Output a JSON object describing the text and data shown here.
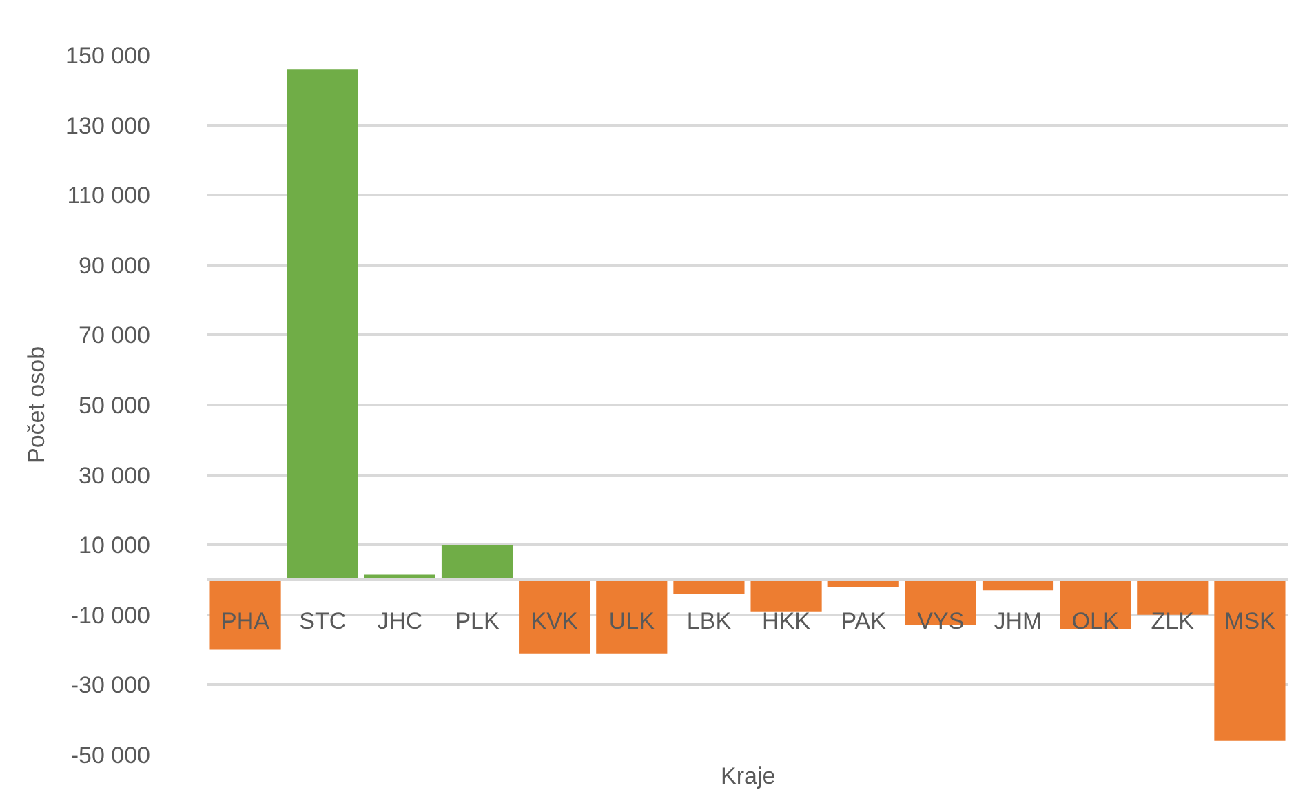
{
  "chart_data": {
    "type": "bar",
    "xlabel": "Kraje",
    "ylabel": "Počet osob",
    "categories": [
      "PHA",
      "STC",
      "JHC",
      "PLK",
      "KVK",
      "ULK",
      "LBK",
      "HKK",
      "PAK",
      "VYS",
      "JHM",
      "OLK",
      "ZLK",
      "MSK"
    ],
    "values": [
      -20000,
      146000,
      1500,
      10000,
      -21000,
      -21000,
      -4000,
      -9000,
      -2000,
      -13000,
      -3000,
      -14000,
      -10000,
      -46000
    ],
    "colors": [
      "#ed7d31",
      "#70ad47",
      "#70ad47",
      "#70ad47",
      "#ed7d31",
      "#ed7d31",
      "#ed7d31",
      "#ed7d31",
      "#ed7d31",
      "#ed7d31",
      "#ed7d31",
      "#ed7d31",
      "#ed7d31",
      "#ed7d31"
    ],
    "ylim": [
      -50000,
      150000
    ],
    "yticks": [
      {
        "value": -50000,
        "label": "-50 000"
      },
      {
        "value": -30000,
        "label": "-30 000"
      },
      {
        "value": -10000,
        "label": "-10 000"
      },
      {
        "value": 10000,
        "label": "10 000"
      },
      {
        "value": 30000,
        "label": "30 000"
      },
      {
        "value": 50000,
        "label": "50 000"
      },
      {
        "value": 70000,
        "label": "70 000"
      },
      {
        "value": 90000,
        "label": "90 000"
      },
      {
        "value": 110000,
        "label": "110 000"
      },
      {
        "value": 130000,
        "label": "130 000"
      },
      {
        "value": 150000,
        "label": "150 000"
      }
    ],
    "grid": "y",
    "legend": false
  }
}
